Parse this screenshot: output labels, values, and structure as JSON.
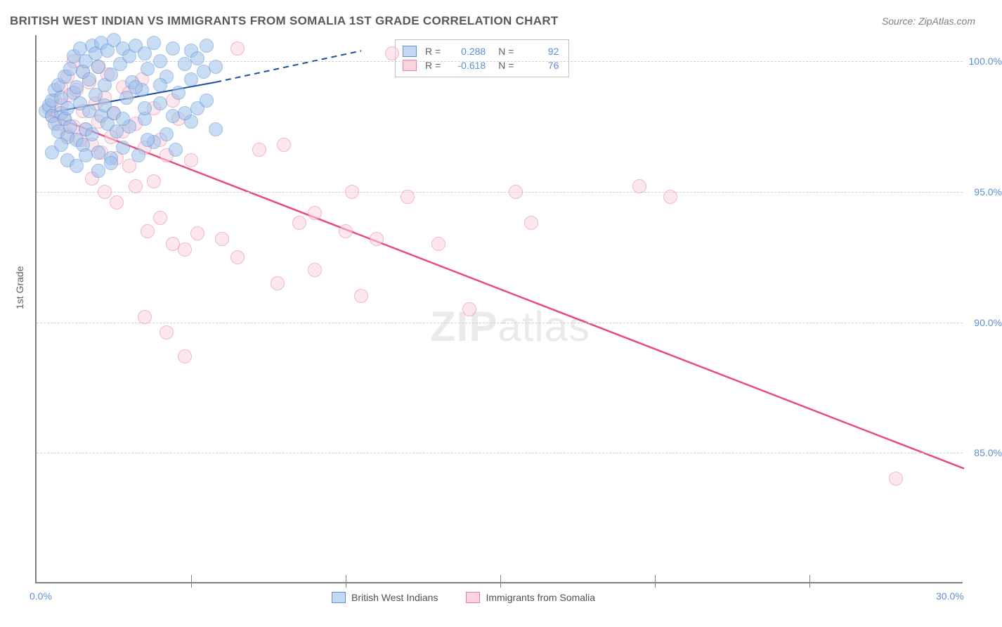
{
  "title": "BRITISH WEST INDIAN VS IMMIGRANTS FROM SOMALIA 1ST GRADE CORRELATION CHART",
  "source": "Source: ZipAtlas.com",
  "y_axis_title": "1st Grade",
  "watermark": "ZIPatlas",
  "chart": {
    "type": "scatter",
    "xlim": [
      0,
      30
    ],
    "ylim": [
      80,
      101
    ],
    "x_ticks": [
      0,
      5,
      10,
      15,
      20,
      25,
      30
    ],
    "x_labels": {
      "0": "0.0%",
      "30": "30.0%"
    },
    "y_ticks": [
      85,
      90,
      95,
      100
    ],
    "y_labels": {
      "85": "85.0%",
      "90": "90.0%",
      "95": "95.0%",
      "100": "100.0%"
    },
    "background_color": "#ffffff",
    "grid_color": "#d0d0d0",
    "axis_color": "#808080",
    "label_color": "#5b8fd6",
    "marker_radius": 10,
    "marker_opacity": 0.55
  },
  "series": {
    "blue": {
      "name": "British West Indians",
      "fill": "#9cc0ea",
      "stroke": "#5b8fd6",
      "r_value": "0.288",
      "n_value": "92",
      "trend": {
        "x1": 0.3,
        "y1": 98.0,
        "x2": 5.8,
        "y2": 99.2,
        "dash_x2": 10.5,
        "dash_y2": 100.4,
        "color": "#1a4e9e",
        "width": 2
      },
      "points": [
        [
          0.3,
          98.1
        ],
        [
          0.4,
          98.3
        ],
        [
          0.5,
          97.9
        ],
        [
          0.5,
          98.5
        ],
        [
          0.6,
          97.6
        ],
        [
          0.6,
          98.9
        ],
        [
          0.7,
          97.3
        ],
        [
          0.7,
          99.1
        ],
        [
          0.8,
          98.0
        ],
        [
          0.8,
          98.6
        ],
        [
          0.9,
          97.8
        ],
        [
          0.9,
          99.4
        ],
        [
          1.0,
          97.1
        ],
        [
          1.0,
          98.2
        ],
        [
          1.1,
          99.7
        ],
        [
          1.1,
          97.5
        ],
        [
          1.2,
          98.8
        ],
        [
          1.2,
          100.2
        ],
        [
          1.3,
          97.0
        ],
        [
          1.3,
          99.0
        ],
        [
          1.4,
          98.4
        ],
        [
          1.4,
          100.5
        ],
        [
          1.5,
          96.8
        ],
        [
          1.5,
          99.6
        ],
        [
          1.6,
          97.4
        ],
        [
          1.6,
          100.0
        ],
        [
          1.7,
          98.1
        ],
        [
          1.7,
          99.3
        ],
        [
          1.8,
          100.6
        ],
        [
          1.8,
          97.2
        ],
        [
          1.9,
          98.7
        ],
        [
          1.9,
          100.3
        ],
        [
          2.0,
          96.5
        ],
        [
          2.0,
          99.8
        ],
        [
          2.1,
          97.9
        ],
        [
          2.1,
          100.7
        ],
        [
          2.2,
          98.3
        ],
        [
          2.2,
          99.1
        ],
        [
          2.3,
          97.6
        ],
        [
          2.3,
          100.4
        ],
        [
          2.4,
          96.3
        ],
        [
          2.4,
          99.5
        ],
        [
          2.5,
          98.0
        ],
        [
          2.5,
          100.8
        ],
        [
          2.6,
          97.3
        ],
        [
          2.7,
          99.9
        ],
        [
          2.8,
          100.5
        ],
        [
          2.8,
          96.7
        ],
        [
          2.9,
          98.6
        ],
        [
          3.0,
          100.2
        ],
        [
          3.0,
          97.5
        ],
        [
          3.1,
          99.2
        ],
        [
          3.2,
          100.6
        ],
        [
          3.3,
          96.4
        ],
        [
          3.4,
          98.9
        ],
        [
          3.5,
          100.3
        ],
        [
          3.5,
          97.8
        ],
        [
          3.6,
          99.7
        ],
        [
          3.8,
          100.7
        ],
        [
          3.8,
          96.9
        ],
        [
          4.0,
          98.4
        ],
        [
          4.0,
          100.0
        ],
        [
          4.2,
          97.2
        ],
        [
          4.2,
          99.4
        ],
        [
          4.4,
          100.5
        ],
        [
          4.5,
          96.6
        ],
        [
          4.6,
          98.8
        ],
        [
          4.8,
          99.9
        ],
        [
          5.0,
          97.7
        ],
        [
          5.0,
          100.4
        ],
        [
          5.2,
          98.2
        ],
        [
          5.4,
          99.6
        ],
        [
          5.5,
          100.6
        ],
        [
          5.8,
          97.4
        ],
        [
          1.0,
          96.2
        ],
        [
          1.3,
          96.0
        ],
        [
          1.6,
          96.4
        ],
        [
          2.0,
          95.8
        ],
        [
          2.4,
          96.1
        ],
        [
          0.5,
          96.5
        ],
        [
          0.8,
          96.8
        ],
        [
          3.2,
          99.0
        ],
        [
          3.6,
          97.0
        ],
        [
          4.0,
          99.1
        ],
        [
          4.4,
          97.9
        ],
        [
          5.0,
          99.3
        ],
        [
          5.5,
          98.5
        ],
        [
          2.8,
          97.8
        ],
        [
          3.5,
          98.2
        ],
        [
          4.8,
          98.0
        ],
        [
          5.2,
          100.1
        ],
        [
          5.8,
          99.8
        ]
      ]
    },
    "pink": {
      "name": "Immigrants from Somalia",
      "fill": "#fbd4de",
      "stroke": "#ec7ba2",
      "r_value": "-0.618",
      "n_value": "76",
      "trend": {
        "x1": 0.3,
        "y1": 98.0,
        "x2": 30.0,
        "y2": 84.4,
        "color": "#e84b82",
        "width": 2.5
      },
      "points": [
        [
          0.4,
          98.2
        ],
        [
          0.5,
          97.9
        ],
        [
          0.6,
          98.5
        ],
        [
          0.7,
          97.6
        ],
        [
          0.8,
          99.0
        ],
        [
          0.8,
          98.3
        ],
        [
          0.9,
          97.8
        ],
        [
          1.0,
          99.4
        ],
        [
          1.0,
          97.2
        ],
        [
          1.1,
          98.7
        ],
        [
          1.2,
          100.0
        ],
        [
          1.2,
          97.5
        ],
        [
          1.3,
          98.9
        ],
        [
          1.4,
          97.0
        ],
        [
          1.5,
          99.6
        ],
        [
          1.5,
          98.1
        ],
        [
          1.6,
          97.4
        ],
        [
          1.7,
          99.2
        ],
        [
          1.8,
          96.8
        ],
        [
          1.9,
          98.4
        ],
        [
          2.0,
          99.8
        ],
        [
          2.0,
          97.7
        ],
        [
          2.1,
          96.5
        ],
        [
          2.2,
          98.6
        ],
        [
          2.3,
          99.5
        ],
        [
          2.4,
          97.1
        ],
        [
          2.5,
          98.0
        ],
        [
          2.6,
          96.3
        ],
        [
          2.8,
          99.0
        ],
        [
          2.8,
          97.3
        ],
        [
          3.0,
          98.8
        ],
        [
          3.0,
          96.0
        ],
        [
          3.2,
          97.6
        ],
        [
          3.4,
          99.3
        ],
        [
          3.5,
          96.7
        ],
        [
          3.8,
          98.2
        ],
        [
          3.8,
          95.4
        ],
        [
          4.0,
          97.0
        ],
        [
          4.2,
          96.4
        ],
        [
          4.4,
          98.5
        ],
        [
          4.6,
          97.8
        ],
        [
          5.0,
          96.2
        ],
        [
          1.8,
          95.5
        ],
        [
          2.2,
          95.0
        ],
        [
          2.6,
          94.6
        ],
        [
          3.2,
          95.2
        ],
        [
          3.6,
          93.5
        ],
        [
          4.0,
          94.0
        ],
        [
          4.4,
          93.0
        ],
        [
          4.8,
          92.8
        ],
        [
          5.2,
          93.4
        ],
        [
          3.5,
          90.2
        ],
        [
          4.2,
          89.6
        ],
        [
          4.8,
          88.7
        ],
        [
          6.0,
          93.2
        ],
        [
          6.5,
          92.5
        ],
        [
          6.5,
          100.5
        ],
        [
          7.2,
          96.6
        ],
        [
          7.8,
          91.5
        ],
        [
          8.0,
          96.8
        ],
        [
          8.5,
          93.8
        ],
        [
          9.0,
          92.0
        ],
        [
          9.0,
          94.2
        ],
        [
          10.0,
          93.5
        ],
        [
          10.2,
          95.0
        ],
        [
          10.5,
          91.0
        ],
        [
          11.0,
          93.2
        ],
        [
          11.5,
          100.3
        ],
        [
          12.0,
          94.8
        ],
        [
          13.0,
          93.0
        ],
        [
          14.0,
          90.5
        ],
        [
          15.5,
          95.0
        ],
        [
          16.0,
          93.8
        ],
        [
          19.5,
          95.2
        ],
        [
          20.5,
          94.8
        ],
        [
          27.8,
          84.0
        ]
      ]
    }
  },
  "legend_top": {
    "r_label": "R  =",
    "n_label": "N  ="
  },
  "legend_bottom": {
    "blue": "British West Indians",
    "pink": "Immigrants from Somalia"
  }
}
